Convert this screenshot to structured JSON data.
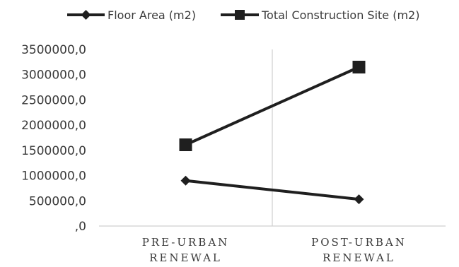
{
  "chart_data": {
    "type": "line",
    "title": "",
    "xlabel": "",
    "ylabel": "",
    "categories": [
      [
        "PRE-URBAN",
        "RENEWAL"
      ],
      [
        "POST-URBAN",
        "RENEWAL"
      ]
    ],
    "ylim": [
      0,
      3500000
    ],
    "yticks": [
      0,
      500000,
      1000000,
      1500000,
      2000000,
      2500000,
      3000000,
      3500000
    ],
    "ytick_labels": [
      ",0",
      "500000,0",
      "1000000,0",
      "1500000,0",
      "2000000,0",
      "2500000,0",
      "3000000,0",
      "3500000,0"
    ],
    "grid": "vertical category separator",
    "legend_position": "top",
    "series": [
      {
        "name": "Floor Area (m2)",
        "marker": "diamond",
        "color": "#1f1f1f",
        "values": [
          900000,
          530000
        ]
      },
      {
        "name": "Total Construction Site (m2)",
        "marker": "square",
        "color": "#1f1f1f",
        "values": [
          1610000,
          3150000
        ]
      }
    ]
  }
}
